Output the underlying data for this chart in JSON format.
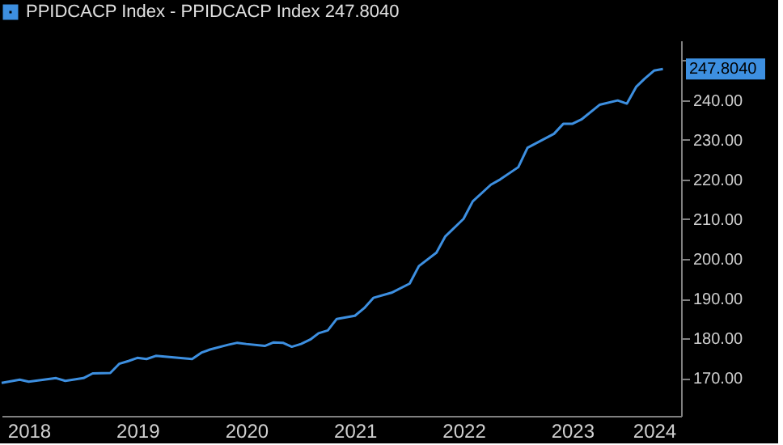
{
  "chart_data": {
    "type": "line",
    "x": [
      "2018-04",
      "2018-06",
      "2018-07",
      "2018-10",
      "2018-11",
      "2019-01",
      "2019-02",
      "2019-04",
      "2019-05",
      "2019-06",
      "2019-07",
      "2019-08",
      "2019-09",
      "2019-11",
      "2020-01",
      "2020-02",
      "2020-03",
      "2020-05",
      "2020-06",
      "2020-07",
      "2020-09",
      "2020-10",
      "2020-11",
      "2020-12",
      "2021-01",
      "2021-02",
      "2021-03",
      "2021-04",
      "2021-05",
      "2021-07",
      "2021-08",
      "2021-09",
      "2021-11",
      "2022-01",
      "2022-02",
      "2022-04",
      "2022-05",
      "2022-07",
      "2022-08",
      "2022-10",
      "2022-11",
      "2023-01",
      "2023-02",
      "2023-05",
      "2023-06",
      "2023-07",
      "2023-08",
      "2023-10",
      "2023-12",
      "2024-01",
      "2024-02",
      "2024-03",
      "2024-04",
      "2024-05"
    ],
    "series": [
      {
        "name": "PPIDCACP Index - PPIDCACP Index  247.8040",
        "color": "#3d8fe0",
        "values": [
          168.8,
          169.6,
          169.1,
          170.0,
          169.3,
          170.0,
          171.2,
          171.3,
          173.6,
          174.3,
          175.1,
          174.8,
          175.6,
          175.2,
          174.8,
          176.4,
          177.2,
          178.4,
          178.9,
          178.6,
          178.1,
          179.0,
          178.9,
          177.9,
          178.6,
          179.7,
          181.3,
          182.0,
          184.9,
          185.7,
          187.6,
          190.2,
          191.5,
          193.8,
          198.2,
          201.6,
          205.7,
          210.1,
          214.5,
          218.7,
          220.0,
          223.1,
          228.0,
          231.5,
          234.0,
          234.0,
          235.1,
          238.8,
          239.9,
          239.1,
          243.3,
          245.4,
          247.4,
          247.804
        ]
      }
    ],
    "xlim": [
      "2018-04",
      "2024-07"
    ],
    "xticks": [
      {
        "value": "2018-07",
        "label": "2018"
      },
      {
        "value": "2019-07",
        "label": "2019"
      },
      {
        "value": "2020-07",
        "label": "2020"
      },
      {
        "value": "2021-07",
        "label": "2021"
      },
      {
        "value": "2022-07",
        "label": "2022"
      },
      {
        "value": "2023-07",
        "label": "2023"
      },
      {
        "value": "2024-04",
        "label": "2024"
      }
    ],
    "ylim": [
      160.5,
      255
    ],
    "yticks": [
      {
        "value": 170,
        "label": "170.00"
      },
      {
        "value": 180,
        "label": "180.00"
      },
      {
        "value": 190,
        "label": "190.00"
      },
      {
        "value": 200,
        "label": "200.00"
      },
      {
        "value": 210,
        "label": "210.00"
      },
      {
        "value": 220,
        "label": "220.00"
      },
      {
        "value": 230,
        "label": "230.00"
      },
      {
        "value": 240,
        "label": "240.00"
      },
      {
        "value": 250,
        "label": null
      }
    ],
    "annotations": [
      {
        "text": "247.8040",
        "x": "2024-05",
        "y": 247.804
      }
    ],
    "legend": "top left",
    "grid": false,
    "marker": "none",
    "line_style": "solid"
  }
}
